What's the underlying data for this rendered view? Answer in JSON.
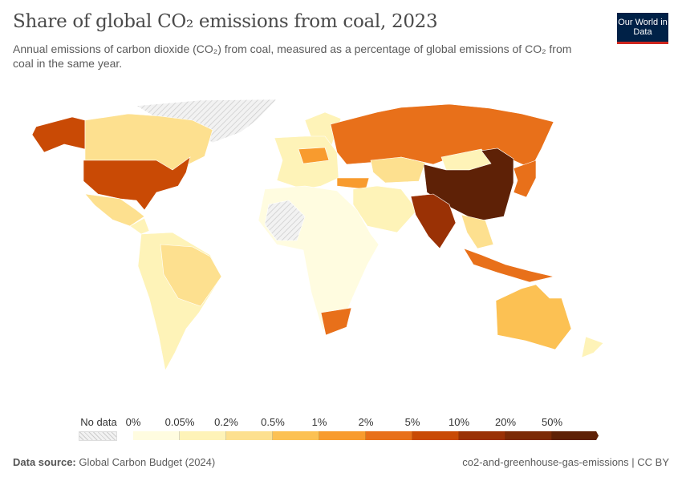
{
  "header": {
    "title": "Share of global CO₂ emissions from coal, 2023",
    "subtitle": "Annual emissions of carbon dioxide (CO₂) from coal, measured as a percentage of global emissions of CO₂ from coal in the same year.",
    "logo": "Our World in Data"
  },
  "legend": {
    "no_data_label": "No data",
    "labels": [
      "0%",
      "0.05%",
      "0.2%",
      "0.5%",
      "1%",
      "2%",
      "5%",
      "10%",
      "20%",
      "50%"
    ],
    "colors": [
      "#fffce0",
      "#fef3b8",
      "#fde08f",
      "#fcc153",
      "#f89b2e",
      "#e8701a",
      "#c94a05",
      "#9a3105",
      "#7b2a06",
      "#5e2106"
    ]
  },
  "footer": {
    "source_label": "Data source:",
    "source": "Global Carbon Budget (2024)",
    "slug": "co2-and-greenhouse-gas-emissions | CC BY"
  }
}
